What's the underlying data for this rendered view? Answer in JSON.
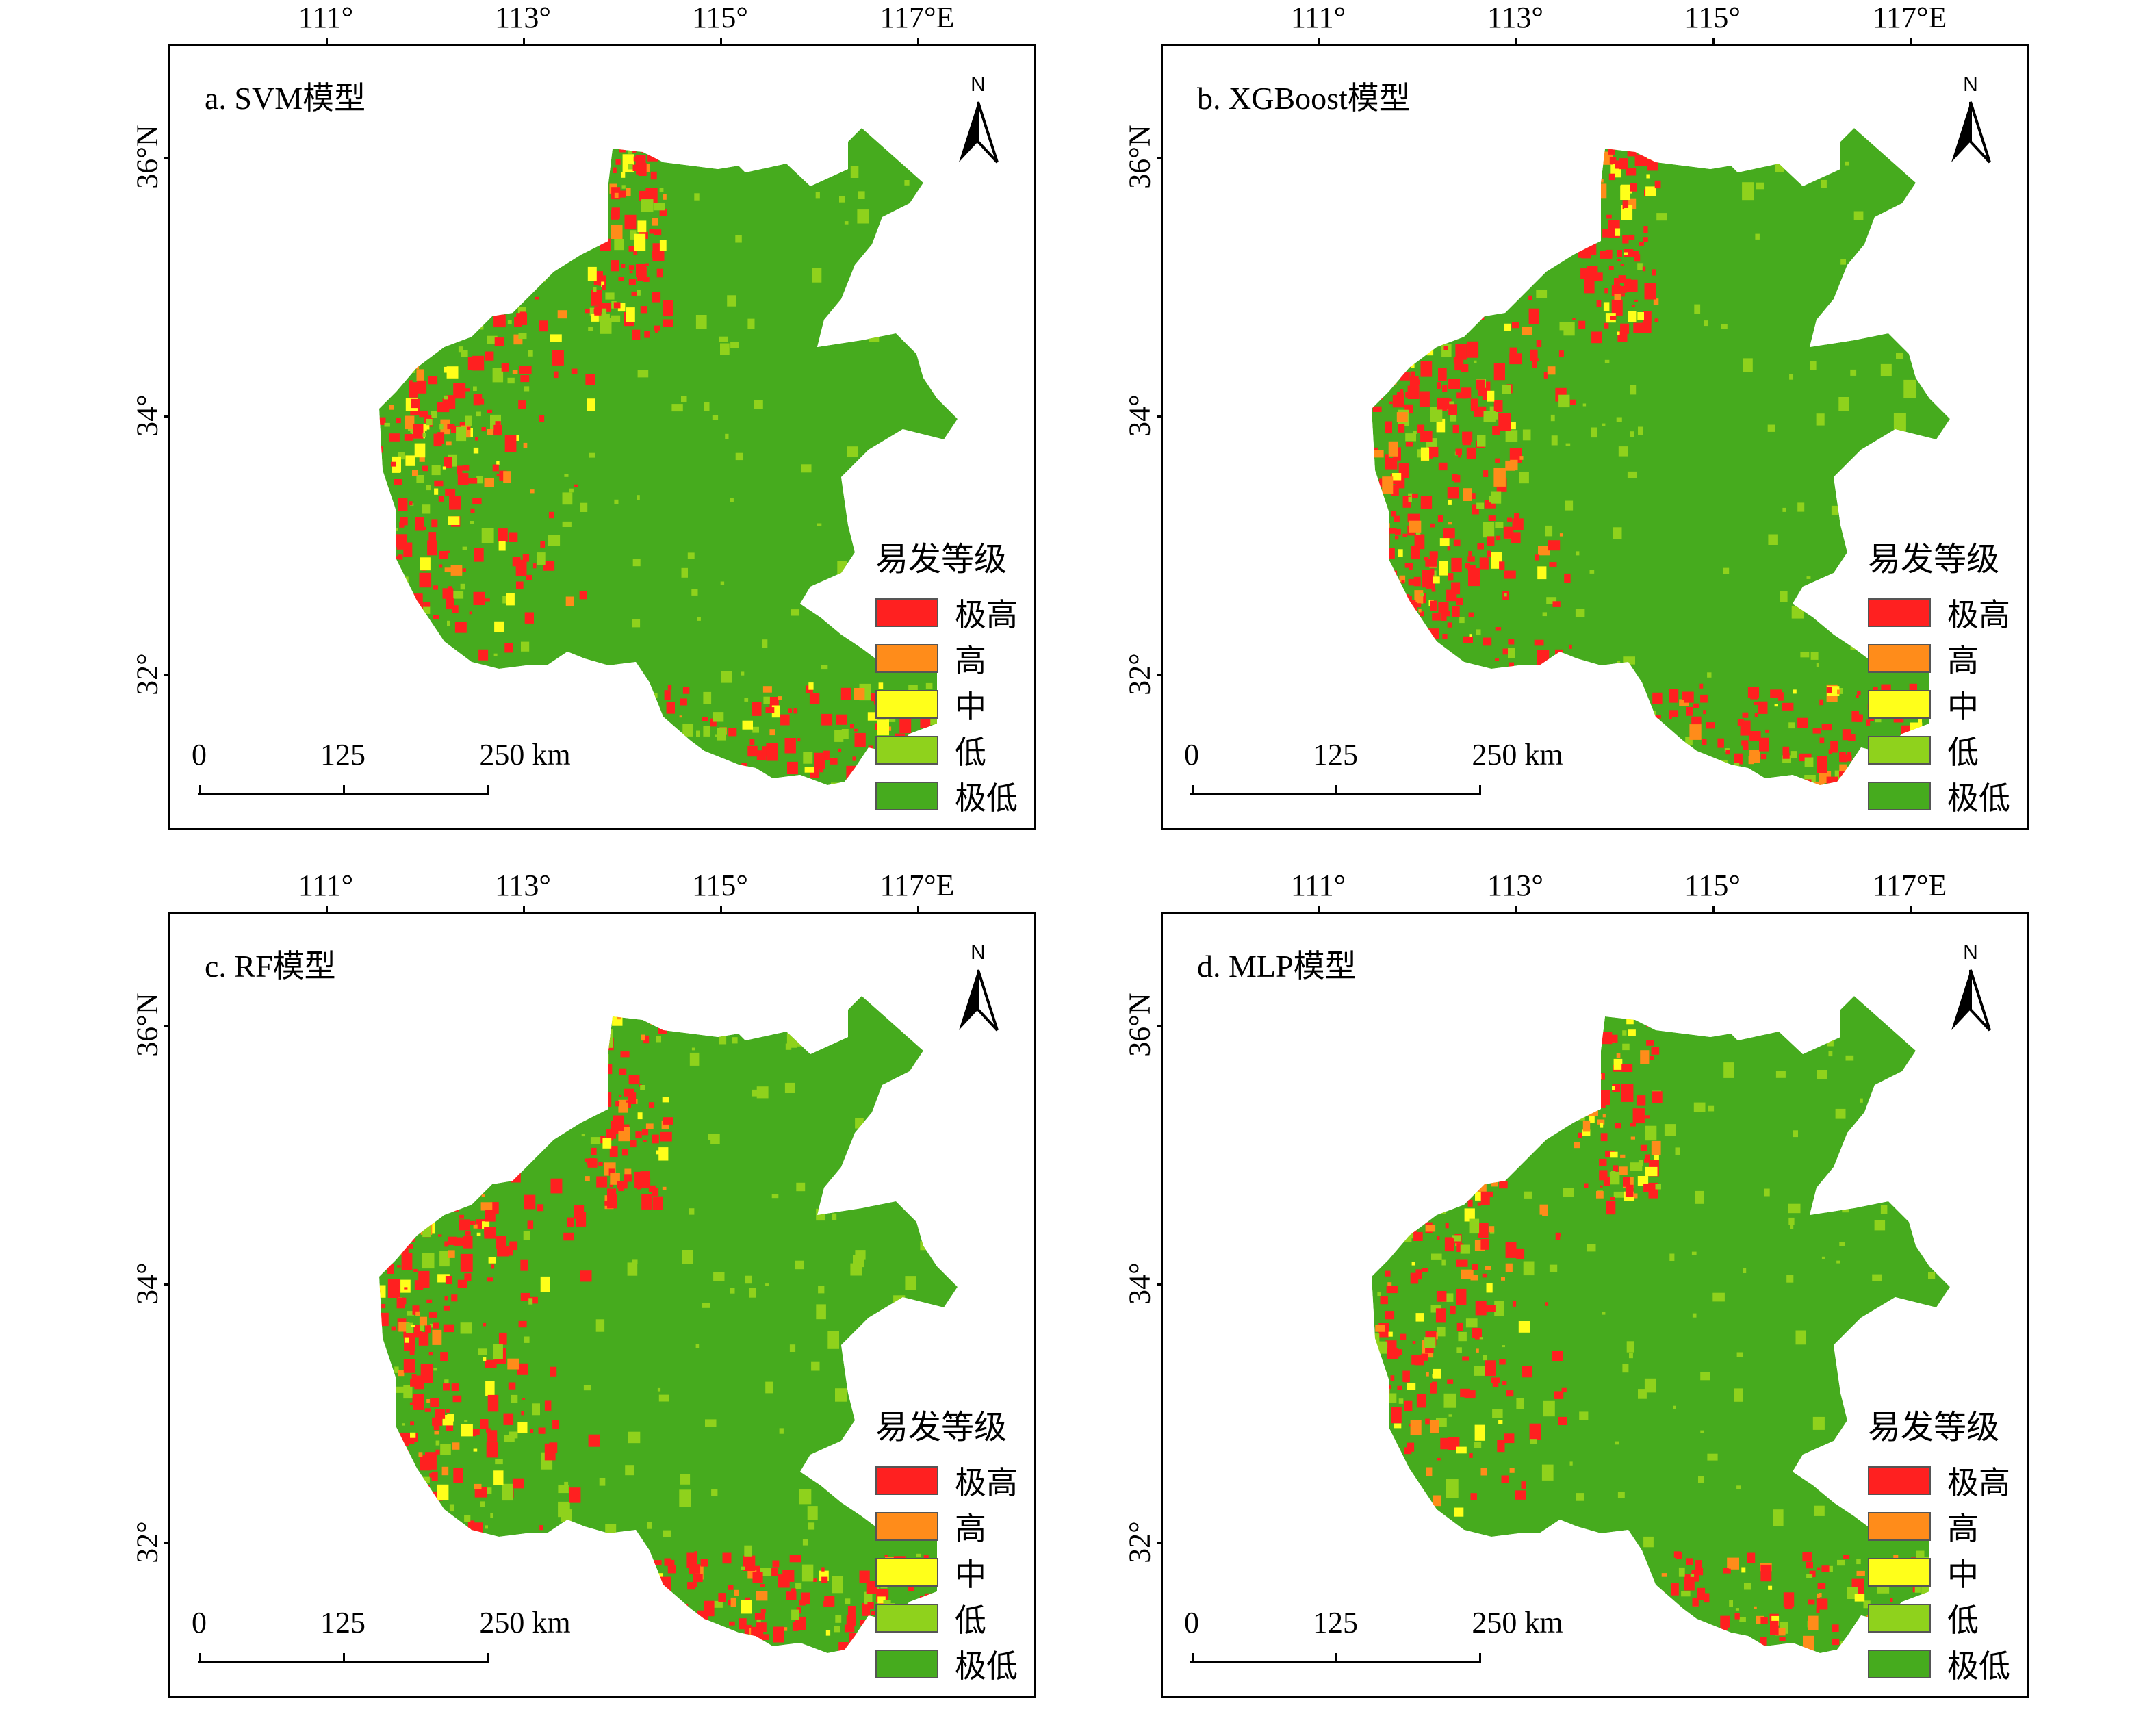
{
  "axes": {
    "lon_labels": [
      "111°",
      "113°",
      "115°",
      "117°E"
    ],
    "lat_labels": [
      "36°N",
      "34°",
      "32°"
    ]
  },
  "legend": {
    "title": "易发等级",
    "items": [
      {
        "label": "极高",
        "color": "#ff2020"
      },
      {
        "label": "高",
        "color": "#ff8c1a"
      },
      {
        "label": "中",
        "color": "#ffff1a"
      },
      {
        "label": "低",
        "color": "#8fd21c"
      },
      {
        "label": "极低",
        "color": "#46ab1e"
      }
    ]
  },
  "scalebar": {
    "labels": [
      "0",
      "125",
      "250 km"
    ]
  },
  "north_arrow": {
    "letter": "N",
    "icon": "north-arrow-icon"
  },
  "panels": [
    {
      "title": "a. SVM模型",
      "red_intensity": 0.55
    },
    {
      "title": "b. XGBoost模型",
      "red_intensity": 0.85
    },
    {
      "title": "c. RF模型",
      "red_intensity": 0.75
    },
    {
      "title": "d. MLP模型",
      "red_intensity": 0.45
    }
  ]
}
